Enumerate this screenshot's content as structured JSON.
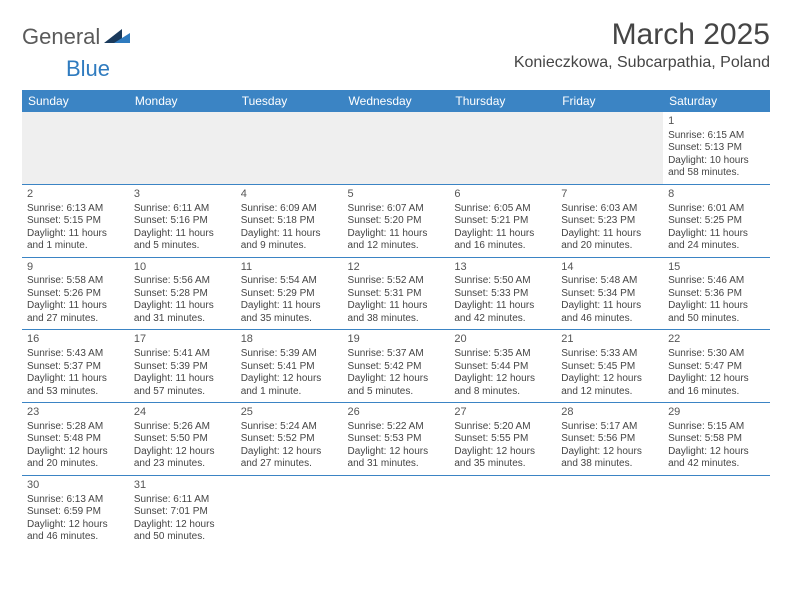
{
  "logo": {
    "part1": "General",
    "part2": "Blue"
  },
  "title": "March 2025",
  "location": "Konieczkowa, Subcarpathia, Poland",
  "colors": {
    "header_bg": "#3b84c4",
    "header_text": "#ffffff",
    "cell_border": "#3b84c4",
    "text": "#454545",
    "blank_bg": "#efefef",
    "logo_accent": "#2f7bbf",
    "logo_dark": "#1a3a5c"
  },
  "weekdays": [
    "Sunday",
    "Monday",
    "Tuesday",
    "Wednesday",
    "Thursday",
    "Friday",
    "Saturday"
  ],
  "weeks": [
    [
      null,
      null,
      null,
      null,
      null,
      null,
      {
        "n": "1",
        "sunrise": "Sunrise: 6:15 AM",
        "sunset": "Sunset: 5:13 PM",
        "daylight": "Daylight: 10 hours and 58 minutes."
      }
    ],
    [
      {
        "n": "2",
        "sunrise": "Sunrise: 6:13 AM",
        "sunset": "Sunset: 5:15 PM",
        "daylight": "Daylight: 11 hours and 1 minute."
      },
      {
        "n": "3",
        "sunrise": "Sunrise: 6:11 AM",
        "sunset": "Sunset: 5:16 PM",
        "daylight": "Daylight: 11 hours and 5 minutes."
      },
      {
        "n": "4",
        "sunrise": "Sunrise: 6:09 AM",
        "sunset": "Sunset: 5:18 PM",
        "daylight": "Daylight: 11 hours and 9 minutes."
      },
      {
        "n": "5",
        "sunrise": "Sunrise: 6:07 AM",
        "sunset": "Sunset: 5:20 PM",
        "daylight": "Daylight: 11 hours and 12 minutes."
      },
      {
        "n": "6",
        "sunrise": "Sunrise: 6:05 AM",
        "sunset": "Sunset: 5:21 PM",
        "daylight": "Daylight: 11 hours and 16 minutes."
      },
      {
        "n": "7",
        "sunrise": "Sunrise: 6:03 AM",
        "sunset": "Sunset: 5:23 PM",
        "daylight": "Daylight: 11 hours and 20 minutes."
      },
      {
        "n": "8",
        "sunrise": "Sunrise: 6:01 AM",
        "sunset": "Sunset: 5:25 PM",
        "daylight": "Daylight: 11 hours and 24 minutes."
      }
    ],
    [
      {
        "n": "9",
        "sunrise": "Sunrise: 5:58 AM",
        "sunset": "Sunset: 5:26 PM",
        "daylight": "Daylight: 11 hours and 27 minutes."
      },
      {
        "n": "10",
        "sunrise": "Sunrise: 5:56 AM",
        "sunset": "Sunset: 5:28 PM",
        "daylight": "Daylight: 11 hours and 31 minutes."
      },
      {
        "n": "11",
        "sunrise": "Sunrise: 5:54 AM",
        "sunset": "Sunset: 5:29 PM",
        "daylight": "Daylight: 11 hours and 35 minutes."
      },
      {
        "n": "12",
        "sunrise": "Sunrise: 5:52 AM",
        "sunset": "Sunset: 5:31 PM",
        "daylight": "Daylight: 11 hours and 38 minutes."
      },
      {
        "n": "13",
        "sunrise": "Sunrise: 5:50 AM",
        "sunset": "Sunset: 5:33 PM",
        "daylight": "Daylight: 11 hours and 42 minutes."
      },
      {
        "n": "14",
        "sunrise": "Sunrise: 5:48 AM",
        "sunset": "Sunset: 5:34 PM",
        "daylight": "Daylight: 11 hours and 46 minutes."
      },
      {
        "n": "15",
        "sunrise": "Sunrise: 5:46 AM",
        "sunset": "Sunset: 5:36 PM",
        "daylight": "Daylight: 11 hours and 50 minutes."
      }
    ],
    [
      {
        "n": "16",
        "sunrise": "Sunrise: 5:43 AM",
        "sunset": "Sunset: 5:37 PM",
        "daylight": "Daylight: 11 hours and 53 minutes."
      },
      {
        "n": "17",
        "sunrise": "Sunrise: 5:41 AM",
        "sunset": "Sunset: 5:39 PM",
        "daylight": "Daylight: 11 hours and 57 minutes."
      },
      {
        "n": "18",
        "sunrise": "Sunrise: 5:39 AM",
        "sunset": "Sunset: 5:41 PM",
        "daylight": "Daylight: 12 hours and 1 minute."
      },
      {
        "n": "19",
        "sunrise": "Sunrise: 5:37 AM",
        "sunset": "Sunset: 5:42 PM",
        "daylight": "Daylight: 12 hours and 5 minutes."
      },
      {
        "n": "20",
        "sunrise": "Sunrise: 5:35 AM",
        "sunset": "Sunset: 5:44 PM",
        "daylight": "Daylight: 12 hours and 8 minutes."
      },
      {
        "n": "21",
        "sunrise": "Sunrise: 5:33 AM",
        "sunset": "Sunset: 5:45 PM",
        "daylight": "Daylight: 12 hours and 12 minutes."
      },
      {
        "n": "22",
        "sunrise": "Sunrise: 5:30 AM",
        "sunset": "Sunset: 5:47 PM",
        "daylight": "Daylight: 12 hours and 16 minutes."
      }
    ],
    [
      {
        "n": "23",
        "sunrise": "Sunrise: 5:28 AM",
        "sunset": "Sunset: 5:48 PM",
        "daylight": "Daylight: 12 hours and 20 minutes."
      },
      {
        "n": "24",
        "sunrise": "Sunrise: 5:26 AM",
        "sunset": "Sunset: 5:50 PM",
        "daylight": "Daylight: 12 hours and 23 minutes."
      },
      {
        "n": "25",
        "sunrise": "Sunrise: 5:24 AM",
        "sunset": "Sunset: 5:52 PM",
        "daylight": "Daylight: 12 hours and 27 minutes."
      },
      {
        "n": "26",
        "sunrise": "Sunrise: 5:22 AM",
        "sunset": "Sunset: 5:53 PM",
        "daylight": "Daylight: 12 hours and 31 minutes."
      },
      {
        "n": "27",
        "sunrise": "Sunrise: 5:20 AM",
        "sunset": "Sunset: 5:55 PM",
        "daylight": "Daylight: 12 hours and 35 minutes."
      },
      {
        "n": "28",
        "sunrise": "Sunrise: 5:17 AM",
        "sunset": "Sunset: 5:56 PM",
        "daylight": "Daylight: 12 hours and 38 minutes."
      },
      {
        "n": "29",
        "sunrise": "Sunrise: 5:15 AM",
        "sunset": "Sunset: 5:58 PM",
        "daylight": "Daylight: 12 hours and 42 minutes."
      }
    ],
    [
      {
        "n": "30",
        "sunrise": "Sunrise: 6:13 AM",
        "sunset": "Sunset: 6:59 PM",
        "daylight": "Daylight: 12 hours and 46 minutes."
      },
      {
        "n": "31",
        "sunrise": "Sunrise: 6:11 AM",
        "sunset": "Sunset: 7:01 PM",
        "daylight": "Daylight: 12 hours and 50 minutes."
      },
      null,
      null,
      null,
      null,
      null
    ]
  ]
}
